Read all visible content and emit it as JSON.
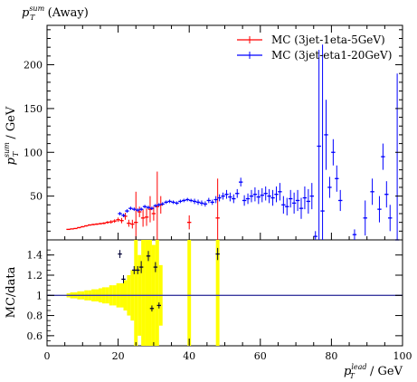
{
  "chart_data": [
    {
      "type": "scatter",
      "panel": "main",
      "title": "p_T^sum (Away)",
      "ylabel": "p_T^sum / GeV",
      "xlabel": "",
      "xlim": [
        0,
        100
      ],
      "ylim": [
        0,
        245
      ],
      "ytick_values": [
        0,
        50,
        100,
        150,
        200
      ],
      "ytick_labels": [
        "",
        "50",
        "100",
        "150",
        "200"
      ],
      "legend_position": "top-right",
      "grid": false,
      "series": [
        {
          "name": "MC (3jet-1eta-5GeV)",
          "color": "#ff0000",
          "x": [
            6,
            7,
            8,
            9,
            10,
            11,
            12,
            13,
            14,
            15,
            16,
            17,
            18,
            19,
            20,
            21,
            22,
            23,
            24,
            25,
            26,
            27,
            28,
            29,
            30,
            31,
            32,
            40,
            48
          ],
          "y": [
            12,
            12.5,
            13,
            14,
            15,
            16,
            17,
            17.5,
            18,
            18.5,
            19,
            20,
            20.5,
            21.5,
            23,
            22,
            27,
            19,
            18,
            20,
            32,
            25,
            26,
            35,
            30,
            38,
            40,
            20,
            25
          ],
          "err": [
            0.5,
            0.5,
            0.5,
            0.7,
            0.7,
            0.8,
            0.8,
            0.9,
            1,
            1,
            1.2,
            1.5,
            2,
            2,
            2.5,
            3,
            4,
            4,
            5,
            35,
            6,
            10,
            10,
            15,
            8,
            40,
            10,
            8,
            45
          ]
        },
        {
          "name": "MC (3jet-eta1-20GeV)",
          "color": "#0000ff",
          "x": [
            20.5,
            21.5,
            22.5,
            23.5,
            24.5,
            25.5,
            26.5,
            27.5,
            28.5,
            29.5,
            30.5,
            31.5,
            32.5,
            33.5,
            34.5,
            35.5,
            36.5,
            37.5,
            38.5,
            39.5,
            40.5,
            41.5,
            42.5,
            43.5,
            44.5,
            45.5,
            46.5,
            47.5,
            48.5,
            49.5,
            50.5,
            51.5,
            52.5,
            53.5,
            54.5,
            55.5,
            56.5,
            57.5,
            58.5,
            59.5,
            60.5,
            61.5,
            62.5,
            63.5,
            64.5,
            65.5,
            66.5,
            67.5,
            68.5,
            69.5,
            70.5,
            71.5,
            72.5,
            73.5,
            74.5,
            75.5,
            76.5,
            77.5,
            78.5,
            79.5,
            80.5,
            81.5,
            82.5,
            86.5,
            89.5,
            91.5,
            93.5,
            94.5,
            95.5,
            96.5,
            98.5
          ],
          "y": [
            30,
            28,
            33,
            36,
            35,
            34,
            35,
            38,
            37,
            36,
            39,
            40,
            41,
            43,
            44,
            43,
            42,
            44,
            45,
            46,
            45,
            44,
            43,
            42,
            41,
            45,
            43,
            46,
            48,
            50,
            52,
            49,
            47,
            53,
            66,
            45,
            47,
            50,
            52,
            49,
            51,
            53,
            50,
            48,
            52,
            55,
            40,
            38,
            47,
            42,
            45,
            36,
            48,
            44,
            50,
            4,
            107,
            33,
            120,
            60,
            100,
            70,
            45,
            6,
            25,
            55,
            35,
            95,
            52,
            25,
            0
          ],
          "err": [
            2,
            2,
            2,
            2,
            2,
            2,
            2,
            2,
            2,
            2,
            2,
            2,
            2,
            2,
            2,
            2,
            2,
            2,
            2,
            2,
            2,
            3,
            3,
            3,
            3,
            3,
            3,
            4,
            4,
            4,
            5,
            5,
            5,
            5,
            5,
            6,
            6,
            7,
            8,
            8,
            8,
            8,
            8,
            9,
            9,
            10,
            10,
            10,
            10,
            12,
            12,
            12,
            13,
            14,
            15,
            6,
            110,
            190,
            40,
            12,
            15,
            15,
            12,
            6,
            20,
            15,
            15,
            15,
            15,
            15,
            190
          ]
        }
      ]
    },
    {
      "type": "scatter",
      "panel": "ratio",
      "title": "",
      "ylabel": "MC/data",
      "xlabel": "p_T^lead / GeV",
      "xlim": [
        0,
        100
      ],
      "ylim": [
        0.5,
        1.55
      ],
      "ytick_labels": [
        "0.6",
        "0.8",
        "1",
        "1.2",
        "1.4"
      ],
      "xtick_labels": [
        "0",
        "20",
        "40",
        "60",
        "80",
        "100"
      ],
      "reference_line": 1,
      "band_color": "#ffff00",
      "band": {
        "x": [
          6,
          7,
          8,
          9,
          10,
          11,
          12,
          13,
          14,
          15,
          16,
          17,
          18,
          19,
          20,
          21,
          22,
          23,
          24,
          25,
          26,
          27,
          28,
          29,
          30,
          31,
          32,
          40,
          48
        ],
        "err": [
          0.02,
          0.03,
          0.03,
          0.04,
          0.04,
          0.05,
          0.05,
          0.06,
          0.06,
          0.07,
          0.08,
          0.08,
          0.1,
          0.1,
          0.12,
          0.12,
          0.15,
          0.2,
          0.25,
          0.6,
          0.4,
          0.6,
          0.6,
          0.7,
          0.5,
          0.8,
          0.3,
          0.8,
          0.6
        ]
      },
      "points": {
        "color": "#000033",
        "x": [
          20.5,
          21.5,
          24.5,
          25.5,
          26.5,
          28.5,
          29.5,
          30.5,
          31.5,
          48
        ],
        "y": [
          1.41,
          1.16,
          1.25,
          1.25,
          1.28,
          1.39,
          0.87,
          1.28,
          0.9,
          1.41
        ],
        "err": [
          0.04,
          0.04,
          0.04,
          0.04,
          0.06,
          0.05,
          0.03,
          0.05,
          0.03,
          0.06
        ]
      }
    }
  ]
}
